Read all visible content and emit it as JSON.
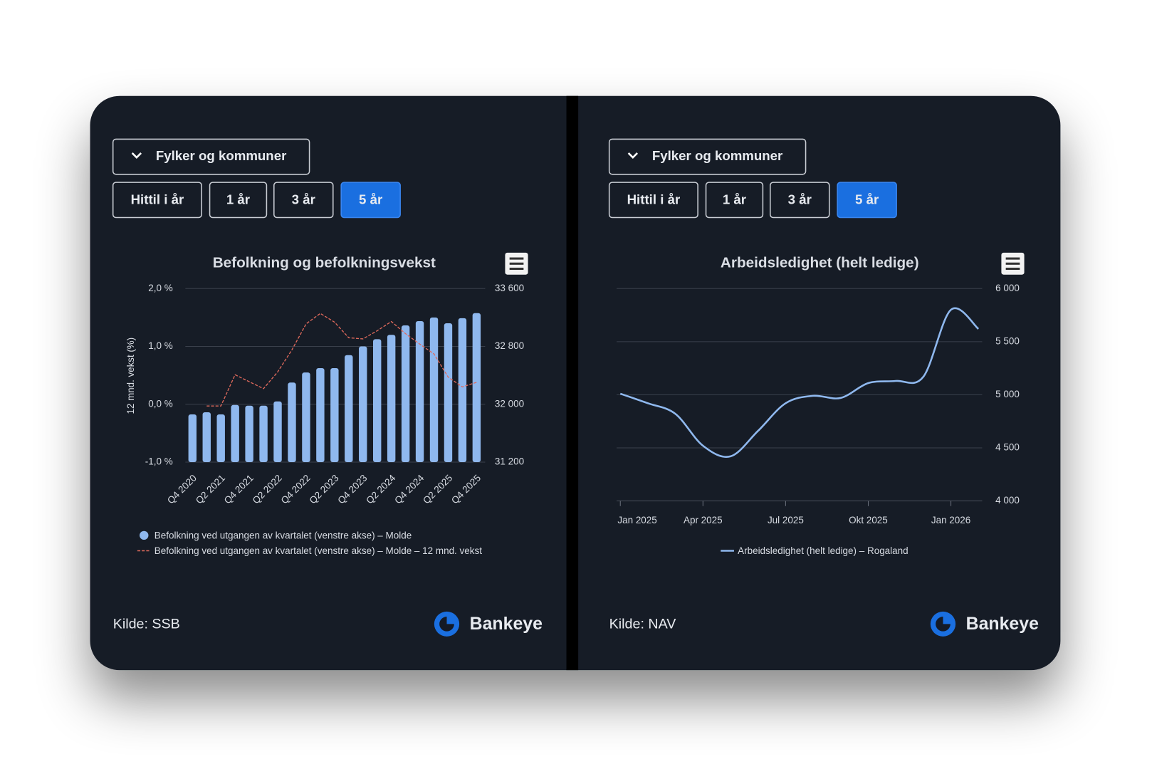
{
  "panels": [
    {
      "dropdown": "Fylker og kommuner",
      "buttons": [
        "Hittil i år",
        "1 år",
        "3 år",
        "5 år"
      ],
      "active_button": 3,
      "source": "Kilde: SSB",
      "brand": "Bankeye"
    },
    {
      "dropdown": "Fylker og kommuner",
      "buttons": [
        "Hittil i år",
        "1 år",
        "3 år",
        "5 år"
      ],
      "active_button": 3,
      "source": "Kilde: NAV",
      "brand": "Bankeye"
    }
  ],
  "chart_data": [
    {
      "type": "bar",
      "title": "Befolkning og befolkningsvekst",
      "ylabel": "12 mnd. vekst (%)",
      "categories": [
        "Q4 2020",
        null,
        "Q2 2021",
        null,
        "Q4 2021",
        null,
        "Q2 2022",
        null,
        "Q4 2022",
        null,
        "Q2 2023",
        null,
        "Q4 2023",
        null,
        "Q2 2024",
        null,
        "Q4 2024",
        null,
        "Q2 2025",
        null,
        "Q4 2025"
      ],
      "ylim": [
        -1,
        2
      ],
      "yticks": [
        {
          "value": -1,
          "label": "-1,0 %"
        },
        {
          "value": 0,
          "label": "0,0 %"
        },
        {
          "value": 1,
          "label": "1,0 %"
        },
        {
          "value": 2,
          "label": "2,0 %"
        }
      ],
      "y2lim": [
        31200,
        33600
      ],
      "y2ticks": [
        {
          "value": 31200,
          "label": "31 200"
        },
        {
          "value": 32000,
          "label": "32 000"
        },
        {
          "value": 32800,
          "label": "32 800"
        },
        {
          "value": 33600,
          "label": "33 600"
        }
      ],
      "grid": true,
      "series": [
        {
          "name": "Befolkning ved utgangen av kvartalet (venstre akse) – Molde",
          "type": "bar",
          "axis": "y2",
          "color": "#8fb8ee",
          "values": [
            31860,
            31890,
            31860,
            31990,
            31980,
            31980,
            32040,
            32300,
            32440,
            32500,
            32500,
            32680,
            32800,
            32900,
            32960,
            33090,
            33150,
            33200,
            33120,
            33190,
            33260
          ]
        },
        {
          "name": "Befolkning ved utgangen av kvartalet (venstre akse) – Molde – 12 mnd. vekst",
          "type": "line",
          "dashed": true,
          "color": "#e06a5c",
          "values": [
            null,
            -0.03,
            -0.03,
            0.51,
            0.39,
            0.27,
            0.56,
            0.94,
            1.39,
            1.57,
            1.42,
            1.15,
            1.13,
            1.27,
            1.43,
            1.22,
            1.04,
            0.87,
            0.47,
            0.3,
            0.38
          ]
        }
      ]
    },
    {
      "type": "line",
      "title": "Arbeidsledighet (helt ledige)",
      "categories": [
        "Jan 2025",
        null,
        null,
        "Apr 2025",
        null,
        null,
        "Jul 2025",
        null,
        null,
        "Okt 2025",
        null,
        null,
        "Jan 2026",
        null
      ],
      "ylim": [
        4000,
        6000
      ],
      "yticks": [
        {
          "value": 4000,
          "label": "4 000"
        },
        {
          "value": 4500,
          "label": "4 500"
        },
        {
          "value": 5000,
          "label": "5 000"
        },
        {
          "value": 5500,
          "label": "5 500"
        },
        {
          "value": 6000,
          "label": "6 000"
        }
      ],
      "y_axis_side": "right",
      "grid": true,
      "smooth": true,
      "series": [
        {
          "name": "Arbeidsledighet (helt ledige) – Rogaland",
          "color": "#8fb8ee",
          "values": [
            5010,
            4920,
            4820,
            4520,
            4420,
            4660,
            4920,
            4990,
            4970,
            5110,
            5130,
            5170,
            5800,
            5620
          ]
        }
      ]
    }
  ]
}
